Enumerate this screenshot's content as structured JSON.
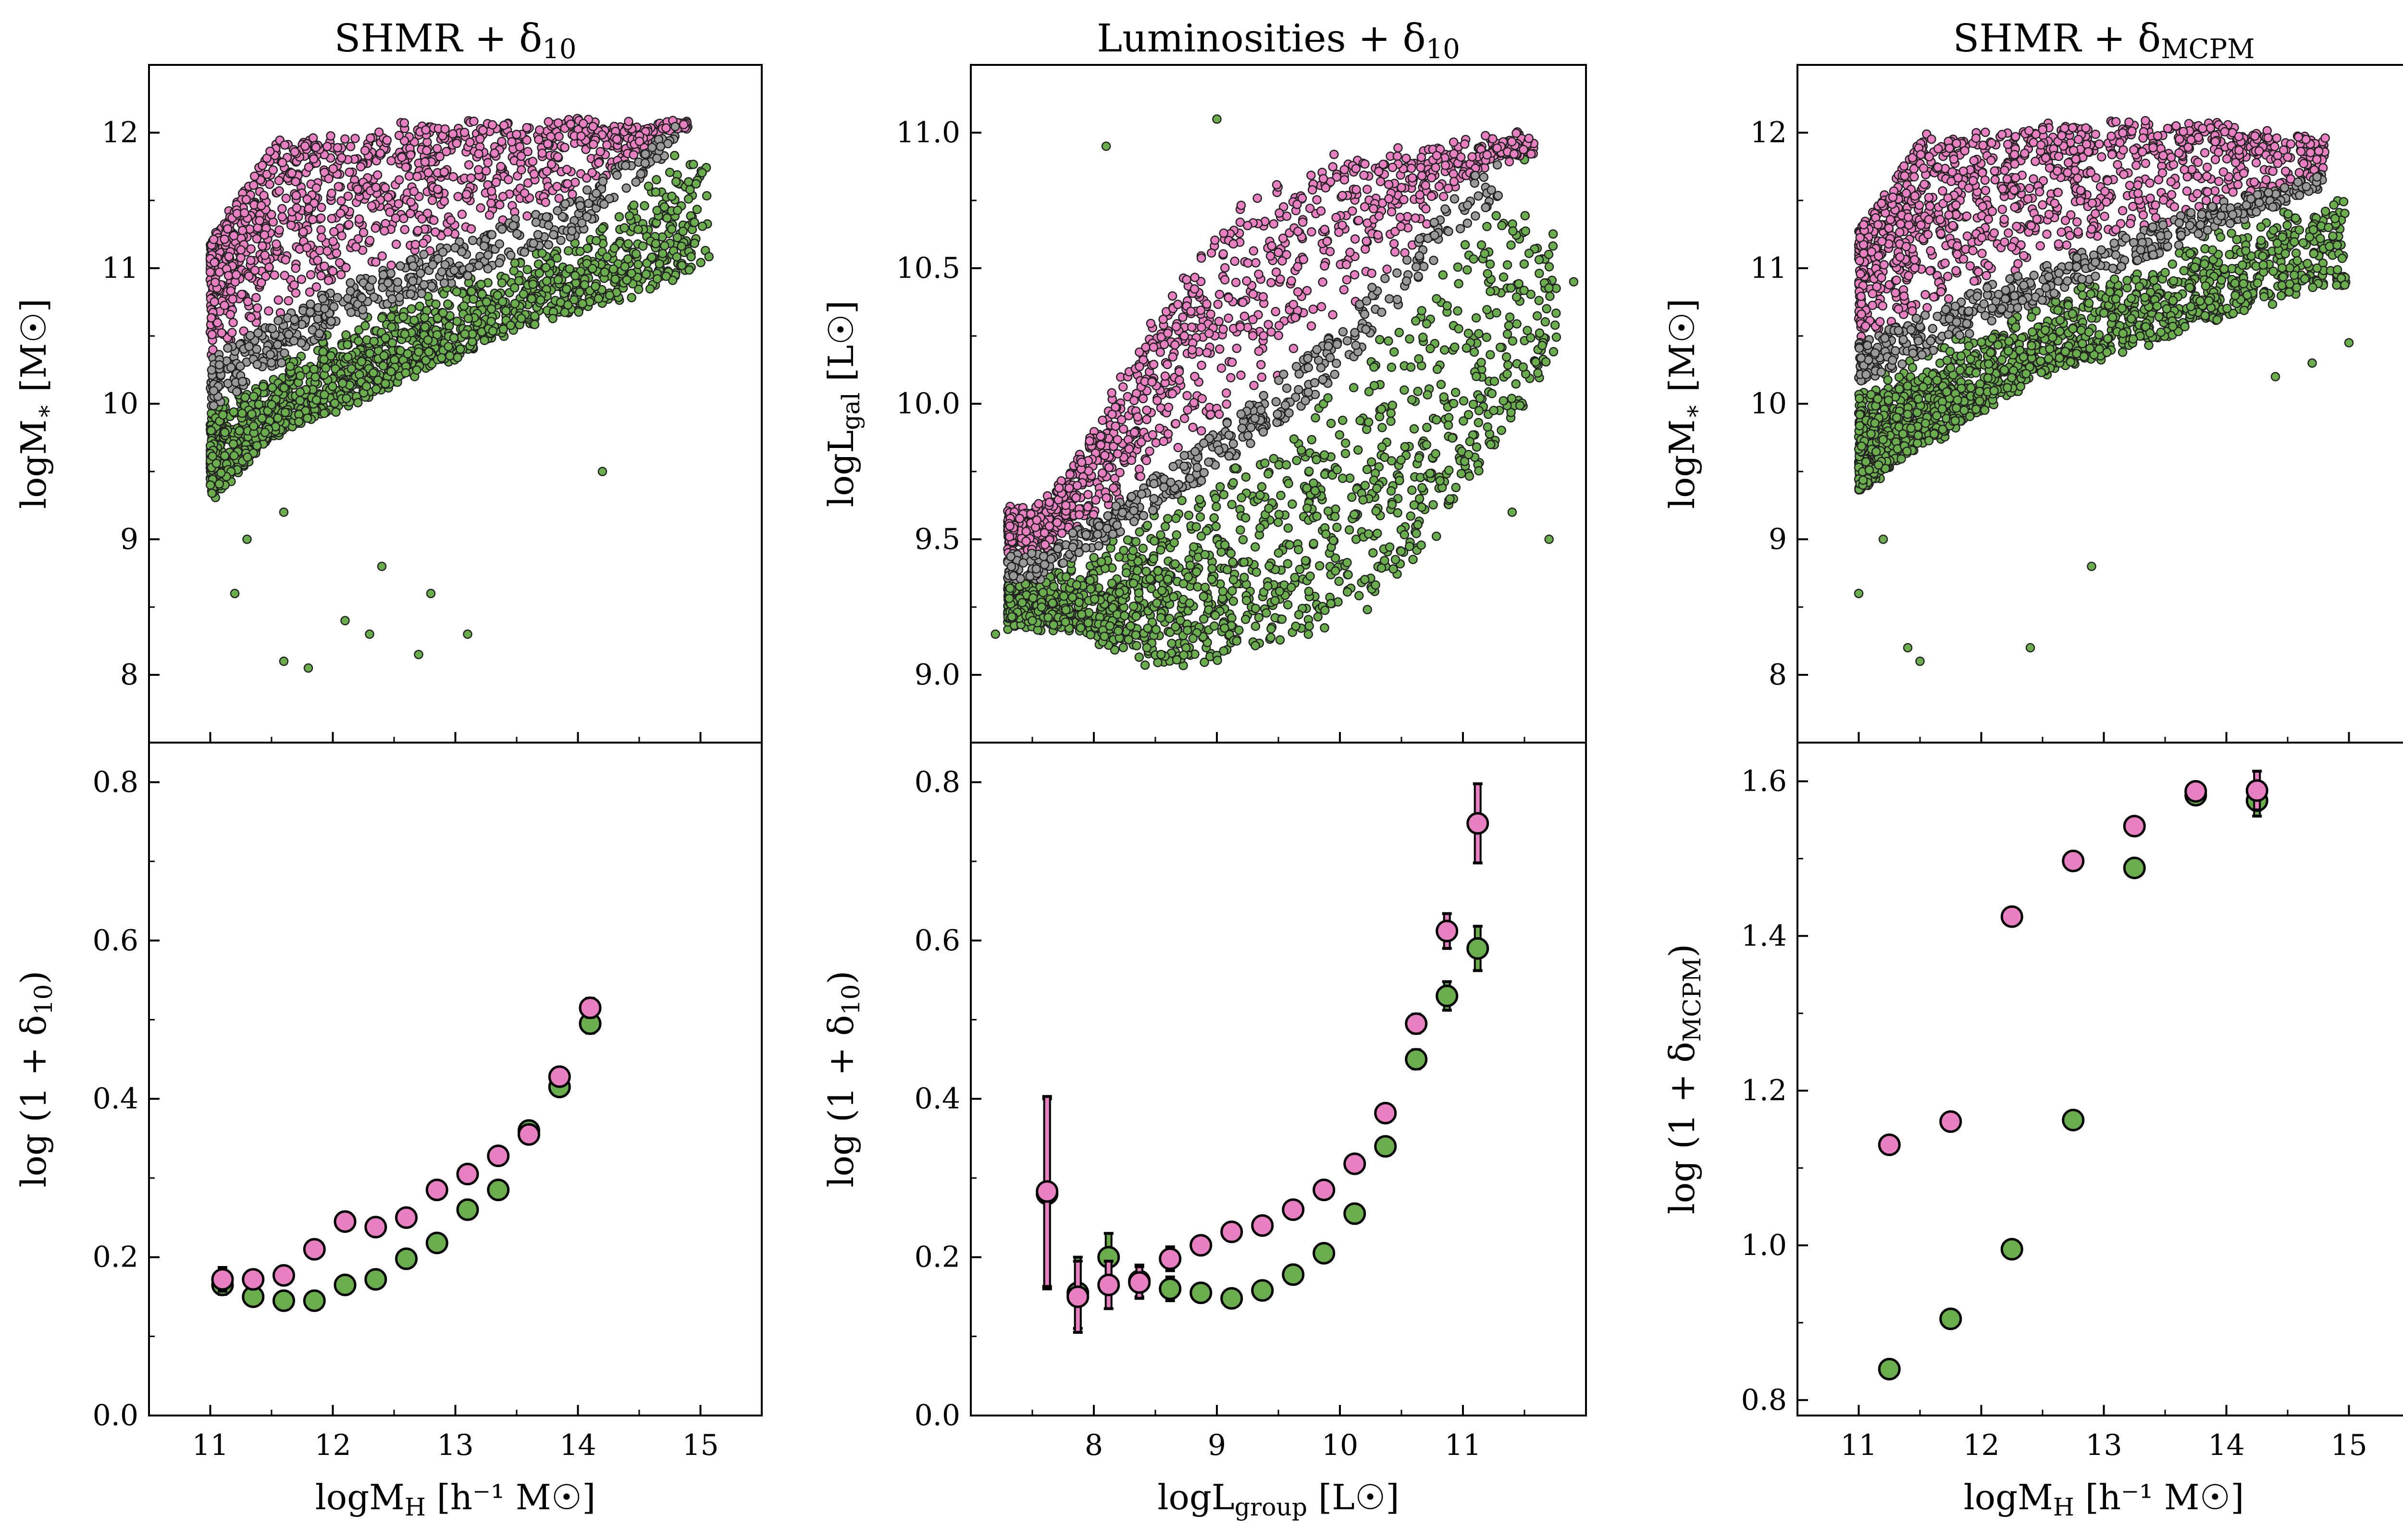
{
  "colors": {
    "pink": "#e87fc0",
    "green": "#6aad4d",
    "gray": "#9a9a9a",
    "edge": "#222222"
  },
  "chart_data": [
    {
      "id": "top-left",
      "type": "scatter",
      "title_main": "SHMR + δ",
      "title_sub": "10",
      "ylabel_main": "logM",
      "ylabel_sub": "∗",
      "ylabel_unit": " [M☉]",
      "xlim": [
        10.5,
        15.5
      ],
      "ylim": [
        7.5,
        12.5
      ],
      "xticks": [
        11,
        12,
        13,
        14,
        15
      ],
      "yticks": [
        8,
        9,
        10,
        11,
        12
      ],
      "ytick_labels": [
        "8",
        "9",
        "10",
        "11",
        "12"
      ],
      "show_xtick_labels": false,
      "cloud": {
        "x_min": 11.0,
        "x_max": 15.2,
        "gray_lo": [
          [
            11.0,
            9.95
          ],
          [
            12.0,
            10.55
          ],
          [
            13.0,
            10.9
          ],
          [
            14.0,
            11.25
          ],
          [
            14.8,
            11.9
          ]
        ],
        "gray_hi": [
          [
            11.0,
            10.35
          ],
          [
            12.0,
            10.85
          ],
          [
            13.0,
            11.2
          ],
          [
            14.0,
            11.55
          ],
          [
            14.8,
            12.05
          ]
        ],
        "pink_top": [
          [
            11.0,
            11.2
          ],
          [
            11.5,
            11.9
          ],
          [
            12.5,
            12.05
          ],
          [
            13.5,
            12.1
          ],
          [
            14.8,
            12.05
          ]
        ],
        "green_bottom": [
          [
            11.0,
            9.3
          ],
          [
            11.5,
            9.75
          ],
          [
            12.5,
            10.15
          ],
          [
            13.5,
            10.55
          ],
          [
            14.5,
            10.8
          ],
          [
            15.2,
            11.1
          ]
        ],
        "outliers": [
          [
            11.6,
            8.1
          ],
          [
            11.8,
            8.05
          ],
          [
            12.1,
            8.4
          ],
          [
            12.3,
            8.3
          ],
          [
            12.4,
            8.8
          ],
          [
            12.7,
            8.15
          ],
          [
            12.8,
            8.6
          ],
          [
            13.1,
            8.3
          ],
          [
            11.2,
            8.6
          ],
          [
            11.3,
            9.0
          ],
          [
            11.6,
            9.2
          ],
          [
            14.2,
            9.5
          ]
        ]
      },
      "n_pink": 1100,
      "n_gray": 450,
      "n_green": 1500
    },
    {
      "id": "top-mid",
      "type": "scatter",
      "title_main": "Luminosities + δ",
      "title_sub": "10",
      "ylabel_main": "logL",
      "ylabel_sub": "gal",
      "ylabel_unit": " [L☉]",
      "xlim": [
        7.0,
        12.0
      ],
      "ylim": [
        8.75,
        11.25
      ],
      "xticks": [
        8,
        9,
        10,
        11
      ],
      "yticks": [
        9.0,
        9.5,
        10.0,
        10.5,
        11.0
      ],
      "ytick_labels": [
        "9.0",
        "9.5",
        "10.0",
        "10.5",
        "11.0"
      ],
      "show_xtick_labels": false,
      "cloud": {
        "x_min": 7.3,
        "x_max": 11.9,
        "gray_lo": [
          [
            7.6,
            9.35
          ],
          [
            9.0,
            9.75
          ],
          [
            10.0,
            10.1
          ],
          [
            11.0,
            10.65
          ],
          [
            11.3,
            10.75
          ]
        ],
        "gray_hi": [
          [
            7.6,
            9.45
          ],
          [
            9.0,
            9.9
          ],
          [
            10.0,
            10.3
          ],
          [
            11.0,
            10.8
          ],
          [
            11.3,
            10.95
          ]
        ],
        "pink_top": [
          [
            7.6,
            9.6
          ],
          [
            8.5,
            10.3
          ],
          [
            9.2,
            10.75
          ],
          [
            10.0,
            10.9
          ],
          [
            11.0,
            10.95
          ]
        ],
        "green_bottom": [
          [
            7.6,
            9.2
          ],
          [
            8.5,
            9.05
          ],
          [
            9.5,
            9.1
          ],
          [
            10.5,
            9.35
          ],
          [
            11.5,
            10.0
          ],
          [
            11.9,
            10.3
          ]
        ],
        "outliers": [
          [
            7.2,
            9.15
          ],
          [
            7.5,
            9.2
          ],
          [
            8.1,
            10.95
          ],
          [
            9.0,
            11.05
          ],
          [
            11.4,
            9.6
          ],
          [
            11.7,
            9.5
          ],
          [
            11.9,
            10.45
          ],
          [
            11.5,
            10.9
          ]
        ]
      },
      "n_pink": 1100,
      "n_gray": 400,
      "n_green": 1500
    },
    {
      "id": "top-right",
      "type": "scatter",
      "title_main": "SHMR + δ",
      "title_sub": "MCPM",
      "ylabel_main": "logM",
      "ylabel_sub": "∗",
      "ylabel_unit": " [M☉]",
      "xlim": [
        10.5,
        15.5
      ],
      "ylim": [
        7.5,
        12.5
      ],
      "xticks": [
        11,
        12,
        13,
        14,
        15
      ],
      "yticks": [
        8,
        9,
        10,
        11,
        12
      ],
      "ytick_labels": [
        "8",
        "9",
        "10",
        "11",
        "12"
      ],
      "show_xtick_labels": false,
      "cloud": {
        "x_min": 11.0,
        "x_max": 15.1,
        "gray_lo": [
          [
            11.0,
            10.15
          ],
          [
            12.0,
            10.55
          ],
          [
            13.0,
            10.95
          ],
          [
            14.0,
            11.3
          ],
          [
            14.8,
            11.6
          ]
        ],
        "gray_hi": [
          [
            11.0,
            10.45
          ],
          [
            12.0,
            10.85
          ],
          [
            13.0,
            11.2
          ],
          [
            14.0,
            11.5
          ],
          [
            14.8,
            11.7
          ]
        ],
        "pink_top": [
          [
            11.0,
            11.3
          ],
          [
            11.5,
            11.95
          ],
          [
            12.5,
            12.05
          ],
          [
            13.5,
            12.1
          ],
          [
            14.8,
            11.95
          ]
        ],
        "green_bottom": [
          [
            11.0,
            9.35
          ],
          [
            11.5,
            9.7
          ],
          [
            12.5,
            10.2
          ],
          [
            13.5,
            10.5
          ],
          [
            14.5,
            10.8
          ],
          [
            15.1,
            10.9
          ]
        ],
        "outliers": [
          [
            11.0,
            8.6
          ],
          [
            11.2,
            9.0
          ],
          [
            11.4,
            8.2
          ],
          [
            11.5,
            8.1
          ],
          [
            12.4,
            8.2
          ],
          [
            12.9,
            8.8
          ],
          [
            14.4,
            10.2
          ],
          [
            14.7,
            10.3
          ],
          [
            15.0,
            10.45
          ]
        ]
      },
      "n_pink": 1100,
      "n_gray": 450,
      "n_green": 1500
    },
    {
      "id": "bottom-left",
      "type": "scatter",
      "xlabel_main": "logM",
      "xlabel_sub": "H",
      "xlabel_unit": " [h⁻¹ M☉]",
      "ylabel_main": "log (1 + δ",
      "ylabel_sub": "10",
      "ylabel_tail": ")",
      "xlim": [
        10.5,
        15.5
      ],
      "ylim": [
        0.0,
        0.85
      ],
      "xticks": [
        11,
        12,
        13,
        14,
        15
      ],
      "xtick_labels": [
        "11",
        "12",
        "13",
        "14",
        "15"
      ],
      "yticks": [
        0.0,
        0.2,
        0.4,
        0.6,
        0.8
      ],
      "ytick_labels": [
        "0.0",
        "0.2",
        "0.4",
        "0.6",
        "0.8"
      ],
      "series": [
        {
          "color": "green",
          "x": [
            11.1,
            11.35,
            11.6,
            11.85,
            12.1,
            12.35,
            12.6,
            12.85,
            13.1,
            13.35,
            13.6,
            13.85,
            14.1
          ],
          "y": [
            0.165,
            0.15,
            0.145,
            0.145,
            0.165,
            0.172,
            0.198,
            0.218,
            0.26,
            0.285,
            0.36,
            0.415,
            0.495
          ],
          "err": [
            0.012,
            0.006,
            0.005,
            0.005,
            0.005,
            0.005,
            0.005,
            0.005,
            0.005,
            0.006,
            0.006,
            0.008,
            0.012
          ]
        },
        {
          "color": "pink",
          "x": [
            11.1,
            11.35,
            11.6,
            11.85,
            12.1,
            12.35,
            12.6,
            12.85,
            13.1,
            13.35,
            13.6,
            13.85,
            14.1
          ],
          "y": [
            0.172,
            0.172,
            0.177,
            0.21,
            0.245,
            0.238,
            0.25,
            0.285,
            0.305,
            0.328,
            0.355,
            0.428,
            0.515
          ],
          "err": [
            0.015,
            0.006,
            0.005,
            0.005,
            0.005,
            0.005,
            0.005,
            0.005,
            0.005,
            0.006,
            0.006,
            0.008,
            0.012
          ]
        }
      ]
    },
    {
      "id": "bottom-mid",
      "type": "scatter",
      "xlabel_main": "logL",
      "xlabel_sub": "group",
      "xlabel_unit": " [L☉]",
      "ylabel_main": "log (1 + δ",
      "ylabel_sub": "10",
      "ylabel_tail": ")",
      "xlim": [
        7.0,
        12.0
      ],
      "ylim": [
        0.0,
        0.85
      ],
      "xticks": [
        8,
        9,
        10,
        11
      ],
      "xtick_labels": [
        "8",
        "9",
        "10",
        "11"
      ],
      "yticks": [
        0.0,
        0.2,
        0.4,
        0.6,
        0.8
      ],
      "ytick_labels": [
        "0.0",
        "0.2",
        "0.4",
        "0.6",
        "0.8"
      ],
      "series": [
        {
          "color": "green",
          "x": [
            7.62,
            7.87,
            8.12,
            8.37,
            8.62,
            8.87,
            9.12,
            9.37,
            9.62,
            9.87,
            10.12,
            10.37,
            10.62,
            10.87,
            11.12
          ],
          "y": [
            0.28,
            0.155,
            0.2,
            0.17,
            0.16,
            0.155,
            0.148,
            0.158,
            0.178,
            0.205,
            0.255,
            0.34,
            0.45,
            0.53,
            0.59
          ],
          "err": [
            0.12,
            0.045,
            0.03,
            0.02,
            0.015,
            0.008,
            0.006,
            0.006,
            0.006,
            0.006,
            0.007,
            0.008,
            0.012,
            0.018,
            0.028
          ]
        },
        {
          "color": "pink",
          "x": [
            7.62,
            7.87,
            8.12,
            8.37,
            8.62,
            8.87,
            9.12,
            9.37,
            9.62,
            9.87,
            10.12,
            10.37,
            10.62,
            10.87,
            11.12
          ],
          "y": [
            0.283,
            0.15,
            0.165,
            0.168,
            0.198,
            0.215,
            0.232,
            0.24,
            0.26,
            0.285,
            0.318,
            0.382,
            0.495,
            0.612,
            0.748
          ],
          "err": [
            0.12,
            0.045,
            0.03,
            0.02,
            0.015,
            0.008,
            0.006,
            0.006,
            0.006,
            0.006,
            0.007,
            0.008,
            0.012,
            0.022,
            0.05
          ]
        }
      ]
    },
    {
      "id": "bottom-right",
      "type": "scatter",
      "xlabel_main": "logM",
      "xlabel_sub": "H",
      "xlabel_unit": " [h⁻¹ M☉]",
      "ylabel_main": "log (1 + δ",
      "ylabel_sub": "MCPM",
      "ylabel_tail": ")",
      "xlim": [
        10.5,
        15.5
      ],
      "ylim": [
        0.78,
        1.65
      ],
      "xticks": [
        11,
        12,
        13,
        14,
        15
      ],
      "xtick_labels": [
        "11",
        "12",
        "13",
        "14",
        "15"
      ],
      "yticks": [
        0.8,
        1.0,
        1.2,
        1.4,
        1.6
      ],
      "ytick_labels": [
        "0.8",
        "1.0",
        "1.2",
        "1.4",
        "1.6"
      ],
      "series": [
        {
          "color": "green",
          "x": [
            11.25,
            11.75,
            12.25,
            12.75,
            13.25,
            13.75,
            14.25
          ],
          "y": [
            0.84,
            0.905,
            0.995,
            1.162,
            1.488,
            1.582,
            1.575
          ],
          "err": [
            0.005,
            0.005,
            0.005,
            0.005,
            0.007,
            0.01,
            0.02
          ]
        },
        {
          "color": "pink",
          "x": [
            11.25,
            11.75,
            12.25,
            12.75,
            13.25,
            13.75,
            14.25
          ],
          "y": [
            1.13,
            1.16,
            1.425,
            1.497,
            1.542,
            1.587,
            1.588
          ],
          "err": [
            0.005,
            0.005,
            0.005,
            0.005,
            0.007,
            0.01,
            0.025
          ]
        }
      ]
    }
  ]
}
